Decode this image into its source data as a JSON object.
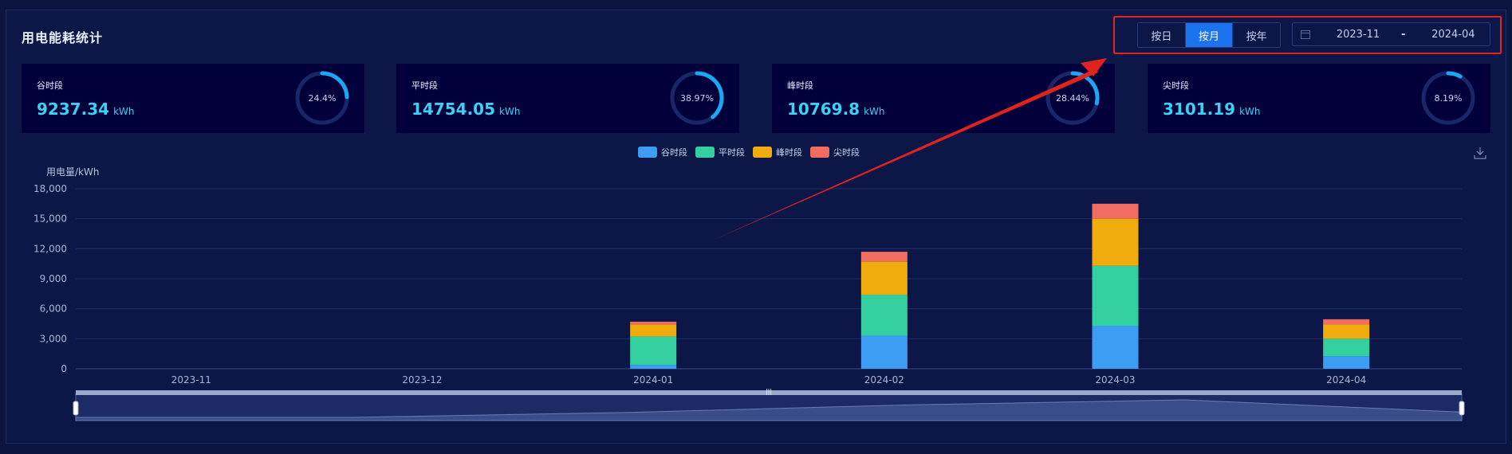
{
  "title": "用电能耗统计",
  "toolbar": {
    "modes": [
      "按日",
      "按月",
      "按年"
    ],
    "active_mode": "按月",
    "start": "2023-11",
    "separator": "-",
    "end": "2024-04"
  },
  "cards": [
    {
      "label": "谷时段",
      "value": "9237.34",
      "unit": "kWh",
      "percent": "24.4%",
      "fraction": 0.244
    },
    {
      "label": "平时段",
      "value": "14754.05",
      "unit": "kWh",
      "percent": "38.97%",
      "fraction": 0.3897
    },
    {
      "label": "峰时段",
      "value": "10769.8",
      "unit": "kWh",
      "percent": "28.44%",
      "fraction": 0.2844
    },
    {
      "label": "尖时段",
      "value": "3101.19",
      "unit": "kWh",
      "percent": "8.19%",
      "fraction": 0.0819
    }
  ],
  "colors": {
    "谷时段": "#3d9df3",
    "平时段": "#34cf9f",
    "峰时段": "#f0ab0c",
    "尖时段": "#f16d62",
    "ring": "#1aa7f4",
    "ring_track": "#1a2766"
  },
  "chart_data": {
    "type": "bar",
    "stacked": true,
    "ylabel": "用电量/kWh",
    "ylim": [
      0,
      18000
    ],
    "yticks": [
      "0",
      "3,000",
      "6,000",
      "9,000",
      "12,000",
      "15,000",
      "18,000"
    ],
    "categories": [
      "2023-11",
      "2023-12",
      "2024-01",
      "2024-02",
      "2024-03",
      "2024-04"
    ],
    "series": [
      {
        "name": "谷时段",
        "color": "#3d9df3",
        "values": [
          0,
          0,
          380,
          3300,
          4300,
          1250
        ]
      },
      {
        "name": "平时段",
        "color": "#34cf9f",
        "values": [
          0,
          0,
          2850,
          4100,
          6000,
          1750
        ]
      },
      {
        "name": "峰时段",
        "color": "#f0ab0c",
        "values": [
          0,
          0,
          1200,
          3300,
          4700,
          1450
        ]
      },
      {
        "name": "尖时段",
        "color": "#f16d62",
        "values": [
          0,
          0,
          280,
          1000,
          1500,
          500
        ]
      }
    ],
    "legend_position": "top-center",
    "grid": true,
    "datazoom": true
  }
}
